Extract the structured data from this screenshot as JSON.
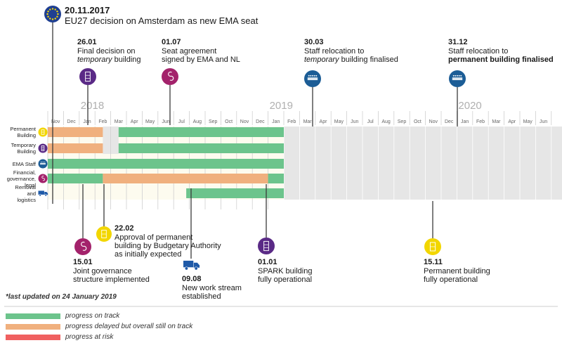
{
  "events": [
    {
      "id": "ema-seat",
      "date": "20.11.2017",
      "lines": [
        {
          "parts": [
            {
              "t": "EU27 decision on Amsterdam as new EMA seat"
            }
          ]
        }
      ],
      "icon": "eu-flag-icon"
    },
    {
      "id": "final-decision",
      "date": "26.01",
      "lines": [
        {
          "parts": [
            {
              "t": "Final decision on"
            }
          ]
        },
        {
          "parts": [
            {
              "t": "temporary",
              "i": true
            },
            {
              "t": " building"
            }
          ]
        }
      ],
      "icon": "temporary-building-icon"
    },
    {
      "id": "seat-agreement",
      "date": "01.07",
      "lines": [
        {
          "parts": [
            {
              "t": "Seat agreement"
            }
          ]
        },
        {
          "parts": [
            {
              "t": "signed by EMA and NL"
            }
          ]
        }
      ],
      "icon": "governance-icon"
    },
    {
      "id": "staff-temp",
      "date": "30.03",
      "lines": [
        {
          "parts": [
            {
              "t": "Staff relocation to"
            }
          ]
        },
        {
          "parts": [
            {
              "t": "temporary",
              "i": true
            },
            {
              "t": " building finalised"
            }
          ]
        }
      ],
      "icon": "ema-staff-icon"
    },
    {
      "id": "staff-perm",
      "date": "31.12",
      "lines": [
        {
          "parts": [
            {
              "t": "Staff relocation to"
            }
          ]
        },
        {
          "parts": [
            {
              "t": "permanent building finalised",
              "b": true
            }
          ]
        }
      ],
      "icon": "ema-staff-icon"
    },
    {
      "id": "joint-gov",
      "date": "15.01",
      "lines": [
        {
          "parts": [
            {
              "t": "Joint governance"
            }
          ]
        },
        {
          "parts": [
            {
              "t": "structure implemented"
            }
          ]
        }
      ],
      "icon": "governance-icon"
    },
    {
      "id": "budget-approval",
      "date": "22.02",
      "lines": [
        {
          "parts": [
            {
              "t": "Approval of permanent"
            }
          ]
        },
        {
          "parts": [
            {
              "t": "building by Budgetary Authority"
            }
          ]
        },
        {
          "parts": [
            {
              "t": "as initially expected"
            }
          ]
        }
      ],
      "icon": "permanent-building-icon"
    },
    {
      "id": "new-stream",
      "date": "09.08",
      "lines": [
        {
          "parts": [
            {
              "t": "New work stream"
            }
          ]
        },
        {
          "parts": [
            {
              "t": "established"
            }
          ]
        }
      ],
      "icon": "truck-icon"
    },
    {
      "id": "spark",
      "date": "01.01",
      "lines": [
        {
          "parts": [
            {
              "t": "SPARK building"
            }
          ]
        },
        {
          "parts": [
            {
              "t": "fully operational"
            }
          ]
        }
      ],
      "icon": "temporary-building-icon"
    },
    {
      "id": "perm-operational",
      "date": "15.11",
      "lines": [
        {
          "parts": [
            {
              "t": "Permanent building"
            }
          ]
        },
        {
          "parts": [
            {
              "t": "fully operational"
            }
          ]
        }
      ],
      "icon": "permanent-building-icon"
    }
  ],
  "timeline": {
    "years": [
      {
        "label": "2018",
        "month": 2
      },
      {
        "label": "2019",
        "month": 14
      },
      {
        "label": "2020",
        "month": 26
      }
    ],
    "months": [
      "Nov",
      "Dec",
      "Jan",
      "Feb",
      "Mar",
      "Apr",
      "May",
      "Jun",
      "Jul",
      "Aug",
      "Sep",
      "Oct",
      "Nov",
      "Dec",
      "Jan",
      "Feb",
      "Mar",
      "Apr",
      "May",
      "Jun",
      "Jul",
      "Aug",
      "Sep",
      "Oct",
      "Nov",
      "Dec",
      "Jan",
      "Feb",
      "Mar",
      "Apr",
      "May",
      "Jun"
    ],
    "current_month_index": 15,
    "rows": [
      {
        "label_lines": [
          "Permanent",
          "Building"
        ],
        "icon": "permanent-building-icon",
        "bars": [
          {
            "start": 0,
            "end": 3.5,
            "status": "delayed"
          },
          {
            "start": 4.5,
            "end": 15,
            "status": "on_track"
          }
        ]
      },
      {
        "label_lines": [
          "Temporary",
          "Building"
        ],
        "icon": "temporary-building-icon",
        "bars": [
          {
            "start": 0,
            "end": 3.5,
            "status": "delayed"
          },
          {
            "start": 4.5,
            "end": 15,
            "status": "on_track"
          }
        ]
      },
      {
        "label_lines": [
          "EMA Staff"
        ],
        "icon": "ema-staff-icon",
        "bars": [
          {
            "start": 0,
            "end": 15,
            "status": "on_track"
          }
        ]
      },
      {
        "label_lines": [
          "Financial,",
          "governance,",
          "legal"
        ],
        "icon": "governance-icon",
        "bars": [
          {
            "start": 0,
            "end": 3.5,
            "status": "on_track"
          },
          {
            "start": 3.5,
            "end": 14,
            "status": "delayed"
          },
          {
            "start": 14,
            "end": 15,
            "status": "on_track"
          }
        ]
      },
      {
        "label_lines": [
          "Removal",
          "and",
          "logistics"
        ],
        "icon": "truck-icon",
        "bars": [
          {
            "start": 8.8,
            "end": 15,
            "status": "on_track"
          }
        ]
      }
    ]
  },
  "footnote": "*last updated on 24 January 2019",
  "legend": [
    {
      "status": "on_track",
      "label": "progress on track"
    },
    {
      "status": "delayed",
      "label": "progress delayed but overall still on track"
    },
    {
      "status": "at_risk",
      "label": "progress at risk"
    }
  ],
  "colors": {
    "on_track": "#6cc48c",
    "delayed": "#f0b07e",
    "at_risk": "#f06060",
    "future_bg": "#e6e6e6",
    "past_band": "#fdfbef",
    "eu_blue": "#1f3f91",
    "eu_star": "#ffdd00",
    "permanent": "#f2d600",
    "temporary": "#5a2a86",
    "ema_staff": "#1c5d96",
    "governance": "#a3226b",
    "truck": "#1f5aa8"
  }
}
